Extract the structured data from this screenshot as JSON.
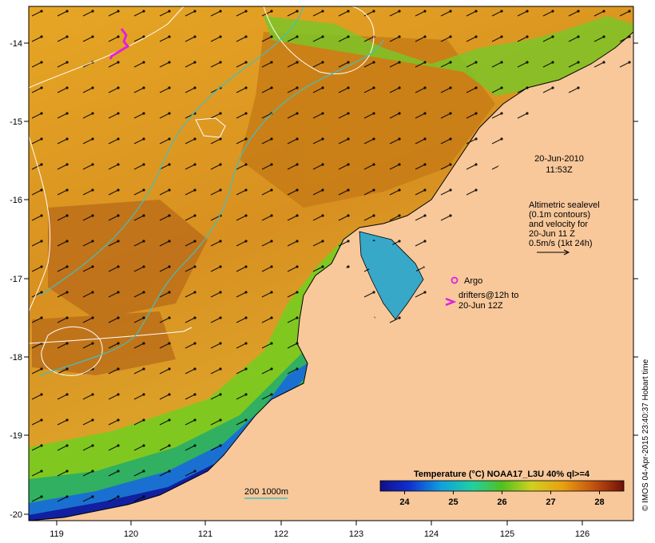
{
  "map": {
    "lon_ticks": [
      "119",
      "120",
      "121",
      "122",
      "123",
      "124",
      "125",
      "126"
    ],
    "lat_ticks": [
      "-14",
      "-15",
      "-16",
      "-17",
      "-18",
      "-19",
      "-20"
    ],
    "datetime_line1": "20-Jun-2010",
    "datetime_line2": "11:53Z",
    "legend_text": [
      "Altimetric sealevel",
      "(0.1m contours)",
      "and velocity for",
      "20-Jun 11 Z",
      "0.5m/s (1kt 24h)"
    ],
    "argo_label": "Argo",
    "drifter_label_1": "drifters@12h to",
    "drifter_label_2": "20-Jun 12Z",
    "isobath_label": "200  1000m",
    "colorbar_title": "Temperature (°C) NOAA17_L3U 40% ql>=4",
    "colorbar_ticks": [
      "24",
      "25",
      "26",
      "27",
      "28"
    ],
    "colorbar_range": [
      23.5,
      28.5
    ],
    "credit": "© IMOS 04-Apr-2015 23:40:37 Hobart time",
    "colors": {
      "land": "#f8c89a",
      "warm_ocean": "#e0a020",
      "hot_ocean": "#b86a10",
      "mid_ocean": "#e8c820",
      "cool_ocean": "#60c020",
      "cold_ocean": "#2090e0",
      "isobath": "#40c0c0",
      "argo": "#e020e0"
    }
  }
}
